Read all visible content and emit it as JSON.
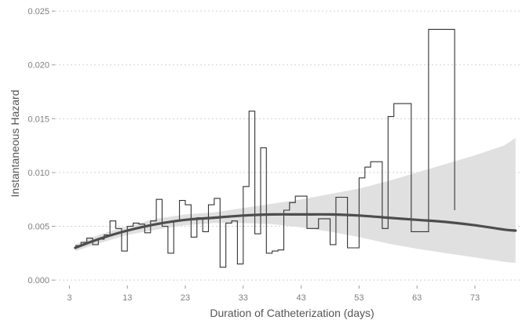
{
  "chart_data": {
    "type": "line",
    "title": "",
    "xlabel": "Duration of Catheterization (days)",
    "ylabel": "Instantaneous Hazard",
    "xlim": [
      0.5,
      81
    ],
    "ylim": [
      -0.0005,
      0.0253
    ],
    "x_ticks": [
      3,
      13,
      23,
      33,
      43,
      53,
      63,
      73
    ],
    "y_ticks": [
      0.0,
      0.005,
      0.01,
      0.015,
      0.02,
      0.025
    ],
    "y_tick_labels": [
      "0.000",
      "0.005",
      "0.010",
      "0.015",
      "0.020",
      "0.025"
    ],
    "grid": "horizontal dotted",
    "legend": "none",
    "series": [
      {
        "kind": "step",
        "color": "#333333",
        "points": [
          [
            4,
            0.0032
          ],
          [
            5,
            0.0035
          ],
          [
            6,
            0.0039
          ],
          [
            7,
            0.0033
          ],
          [
            8,
            0.0038
          ],
          [
            9,
            0.0042
          ],
          [
            10,
            0.0055
          ],
          [
            11,
            0.0048
          ],
          [
            12,
            0.0027
          ],
          [
            13,
            0.005
          ],
          [
            14,
            0.0053
          ],
          [
            15,
            0.0052
          ],
          [
            16,
            0.0044
          ],
          [
            17,
            0.0055
          ],
          [
            18,
            0.0075
          ],
          [
            19,
            0.005
          ],
          [
            20,
            0.0025
          ],
          [
            21,
            0.0055
          ],
          [
            22,
            0.0074
          ],
          [
            23,
            0.007
          ],
          [
            24,
            0.004
          ],
          [
            25,
            0.0058
          ],
          [
            26,
            0.0045
          ],
          [
            27,
            0.007
          ],
          [
            28,
            0.0076
          ],
          [
            29,
            0.0012
          ],
          [
            30,
            0.0053
          ],
          [
            31,
            0.0055
          ],
          [
            32,
            0.0015
          ],
          [
            33,
            0.0087
          ],
          [
            34,
            0.0157
          ],
          [
            35,
            0.0043
          ],
          [
            36,
            0.0123
          ],
          [
            37,
            0.0025
          ],
          [
            38,
            0.0027
          ],
          [
            39,
            0.0028
          ],
          [
            40,
            0.0065
          ],
          [
            41,
            0.0072
          ],
          [
            42,
            0.0078
          ],
          [
            44,
            0.0048
          ],
          [
            46,
            0.0057
          ],
          [
            48,
            0.0033
          ],
          [
            49,
            0.0077
          ],
          [
            51,
            0.003
          ],
          [
            53,
            0.0095
          ],
          [
            54,
            0.0105
          ],
          [
            55,
            0.011
          ],
          [
            57,
            0.0048
          ],
          [
            58,
            0.0152
          ],
          [
            59,
            0.0164
          ],
          [
            62,
            0.0045
          ],
          [
            65,
            0.0233
          ],
          [
            69.5,
            0.0065
          ]
        ]
      },
      {
        "kind": "smooth",
        "color": "#4d4d4d",
        "x": [
          4,
          8,
          13,
          18,
          23,
          28,
          33,
          38,
          43,
          48,
          53,
          58,
          63,
          68,
          73,
          78,
          80
        ],
        "y": [
          0.003,
          0.0038,
          0.0046,
          0.0052,
          0.0056,
          0.0058,
          0.006,
          0.0061,
          0.0061,
          0.0061,
          0.006,
          0.0058,
          0.0056,
          0.0054,
          0.0051,
          0.0047,
          0.0046
        ],
        "ci_lower": [
          0.0027,
          0.0034,
          0.0042,
          0.0047,
          0.0051,
          0.0053,
          0.0053,
          0.0052,
          0.0049,
          0.0045,
          0.004,
          0.0034,
          0.0029,
          0.0025,
          0.0021,
          0.0017,
          0.0016
        ],
        "ci_upper": [
          0.0033,
          0.0042,
          0.005,
          0.0057,
          0.0061,
          0.0063,
          0.0067,
          0.0071,
          0.0075,
          0.008,
          0.0085,
          0.0092,
          0.01,
          0.0108,
          0.0116,
          0.0125,
          0.0132
        ],
        "ci_color": "#e0e0e0"
      }
    ]
  }
}
